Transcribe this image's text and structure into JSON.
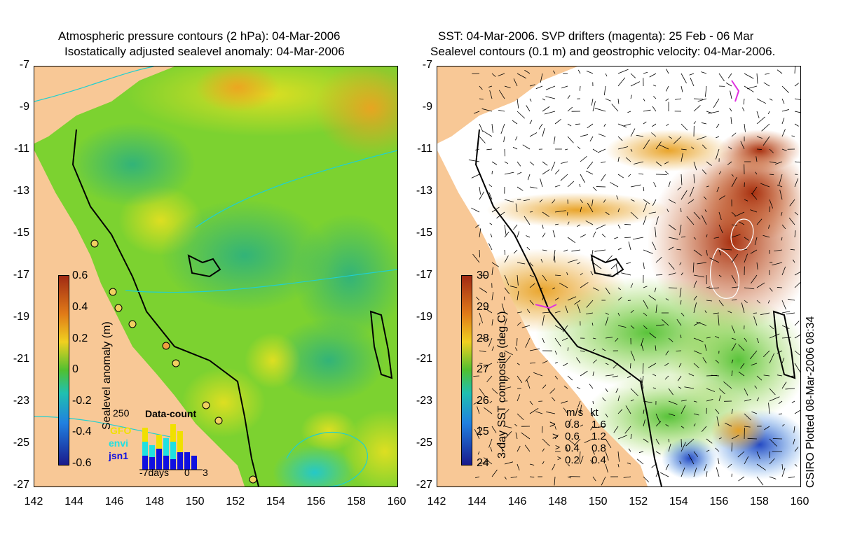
{
  "left_panel": {
    "title_line1": "Atmospheric pressure contours (2 hPa): 04-Mar-2006",
    "title_line2": "Isostatically adjusted sealevel anomaly: 04-Mar-2006",
    "colorbar_label": "Sealevel anomaly (m)",
    "colorbar_ticks": [
      "0.6",
      "0.4",
      "0.2",
      "0",
      "-0.2",
      "-0.4",
      "-0.6"
    ],
    "inset": {
      "title": "Data-count",
      "max_label": "250",
      "series": [
        "GFO",
        "envi",
        "jsn1"
      ],
      "series_colors": [
        "#f0e000",
        "#20e0e0",
        "#1010e0"
      ],
      "x_labels": [
        "-7days",
        "0",
        "3"
      ]
    }
  },
  "right_panel": {
    "title_line1": "SST: 04-Mar-2006. SVP drifters (magenta): 25 Feb - 06 Mar",
    "title_line2": "Sealevel contours (0.1 m) and geostrophic velocity: 04-Mar-2006.",
    "colorbar_label": "3-day SST composite (deg C)",
    "colorbar_ticks": [
      "30",
      "29",
      "28",
      "27",
      "26",
      "25",
      "24"
    ],
    "velocity_legend": {
      "header_ms": "m/s",
      "header_kt": "kt",
      "rows": [
        {
          "ms": "0.8",
          "kt": "1.6"
        },
        {
          "ms": "0.6",
          "kt": "1.2"
        },
        {
          "ms": "0.4",
          "kt": "0.8"
        },
        {
          "ms": "0.2",
          "kt": "0.4"
        }
      ]
    }
  },
  "axes": {
    "y_ticks": [
      "-7",
      "-9",
      "-11",
      "-13",
      "-15",
      "-17",
      "-19",
      "-21",
      "-23",
      "-25",
      "-27"
    ],
    "x_ticks": [
      "142",
      "144",
      "146",
      "148",
      "150",
      "152",
      "154",
      "156",
      "158",
      "160"
    ]
  },
  "credit": "CSIRO Plotted 08-Mar-2006 08:34",
  "colors": {
    "land": "#f8c896",
    "sla_low": "#2a2a9e",
    "sla_mid": "#55c832",
    "sla_high": "#a02a14",
    "sst_warm": "#b04010"
  }
}
